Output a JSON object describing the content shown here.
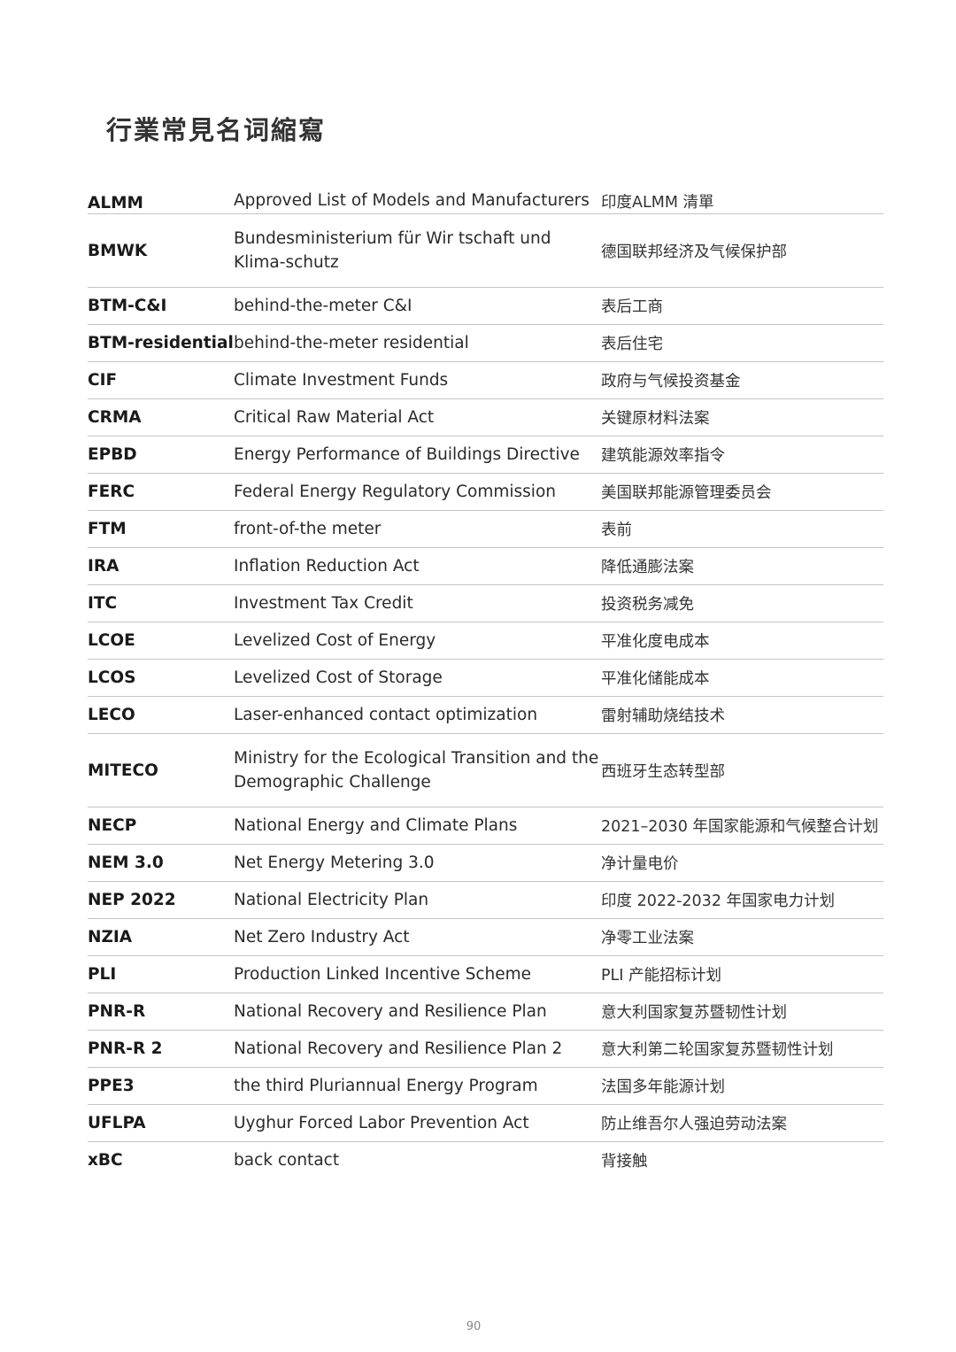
{
  "title": "行業常見名词縮寫",
  "rows": [
    {
      "abbr": "ALMM",
      "en": "Approved List of Models and Manufacturers",
      "zh": "印度ALMM 清單"
    },
    {
      "abbr": "BMWK",
      "en": "Bundesministerium für Wir tschaft und Klima-schutz",
      "zh": "德国联邦经济及气候保护部"
    },
    {
      "abbr": "BTM-C&I",
      "en": "behind-the-meter C&I",
      "zh": "表后工商"
    },
    {
      "abbr": "BTM-residential",
      "en": "behind-the-meter residential",
      "zh": "表后住宅"
    },
    {
      "abbr": "CIF",
      "en": "Climate Investment Funds",
      "zh": "政府与气候投资基金"
    },
    {
      "abbr": "CRMA",
      "en": "Critical Raw Material Act",
      "zh": "关键原材料法案"
    },
    {
      "abbr": "EPBD",
      "en": "Energy Performance of Buildings Directive",
      "zh": "建筑能源效率指令"
    },
    {
      "abbr": "FERC",
      "en": "Federal Energy Regulatory Commission",
      "zh": "美国联邦能源管理委员会"
    },
    {
      "abbr": "FTM",
      "en": "front-of-the meter",
      "zh": "表前"
    },
    {
      "abbr": "IRA",
      "en": "Inflation Reduction Act",
      "zh": "降低通膨法案"
    },
    {
      "abbr": "ITC",
      "en": "Investment Tax Credit",
      "zh": "投资税务减免"
    },
    {
      "abbr": "LCOE",
      "en": "Levelized Cost of Energy",
      "zh": "平准化度电成本"
    },
    {
      "abbr": "LCOS",
      "en": "Levelized Cost of Storage",
      "zh": "平准化储能成本"
    },
    {
      "abbr": "LECO",
      "en": "Laser-enhanced contact optimization",
      "zh": "雷射辅助烧结技术"
    },
    {
      "abbr": "MITECO",
      "en": "Ministry for the Ecological Transition and the Demographic Challenge",
      "zh": "西班牙生态转型部"
    },
    {
      "abbr": "NECP",
      "en": "National Energy and Climate Plans",
      "zh": "2021–2030 年国家能源和气候整合计划"
    },
    {
      "abbr": "NEM 3.0",
      "en": "Net Energy Metering 3.0",
      "zh": "净计量电价"
    },
    {
      "abbr": "NEP 2022",
      "en": "National Electricity Plan",
      "zh": "印度 2022-2032 年国家电力计划"
    },
    {
      "abbr": "NZIA",
      "en": "Net Zero Industry Act",
      "zh": "净零工业法案"
    },
    {
      "abbr": "PLI",
      "en": "Production Linked Incentive Scheme",
      "zh": "PLI 产能招标计划"
    },
    {
      "abbr": "PNR-R",
      "en": "National Recovery and Resilience Plan",
      "zh": "意大利国家复苏暨韧性计划"
    },
    {
      "abbr": "PNR-R 2",
      "en": "National Recovery and Resilience Plan 2",
      "zh": "意大利第二轮国家复苏暨韧性计划"
    },
    {
      "abbr": "PPE3",
      "en": "the third Pluriannual Energy Program",
      "zh": "法国多年能源计划"
    },
    {
      "abbr": "UFLPA",
      "en": "Uyghur Forced Labor Prevention Act",
      "zh": "防止维吾尔人强迫劳动法案"
    },
    {
      "abbr": "xBC",
      "en": "back contact",
      "zh": "背接触"
    }
  ],
  "page_number": "90"
}
